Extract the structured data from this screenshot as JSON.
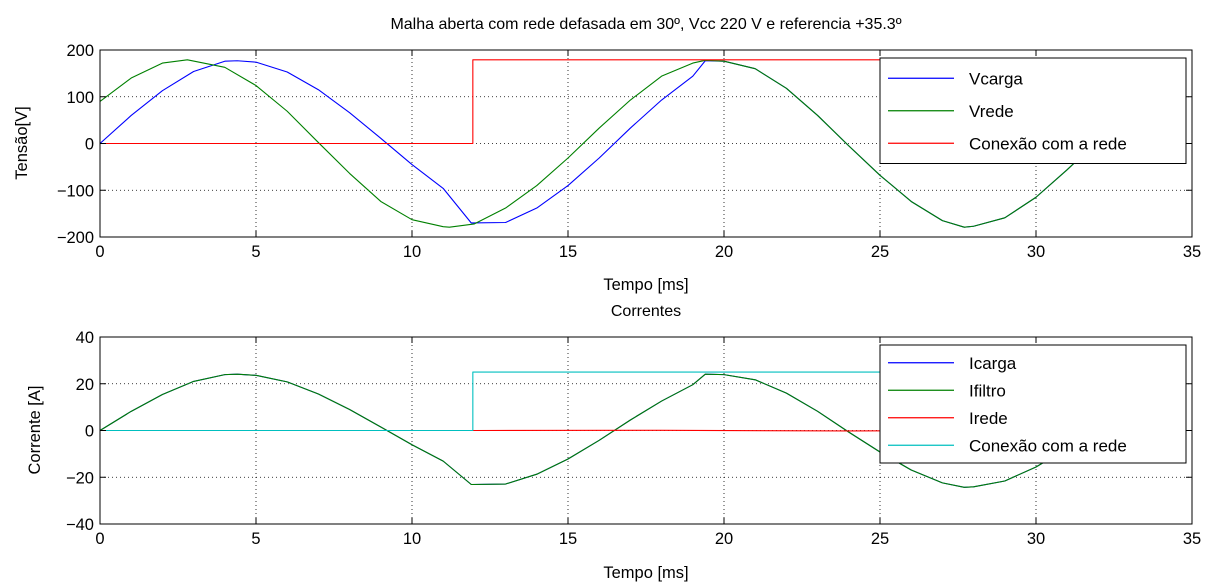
{
  "chart_data": [
    {
      "type": "line",
      "title": "Malha aberta com rede defasada em 30º, Vcc 220 V e referencia +35.3º",
      "xlabel": "Tempo [ms]",
      "ylabel": "Tensão[V]",
      "xlim": [
        0,
        35
      ],
      "ylim": [
        -200,
        200
      ],
      "xticks": [
        "0",
        "5",
        "10",
        "15",
        "20",
        "25",
        "30",
        "35"
      ],
      "yticks": [
        "−200",
        "−100",
        "0",
        "100",
        "200"
      ],
      "grid": true,
      "legend_position": "top-right",
      "series": [
        {
          "name": "Vcarga",
          "color": "#0000ff",
          "x": [
            0,
            1,
            2,
            3,
            4,
            4.4,
            5,
            6,
            7,
            8,
            9,
            10,
            11,
            11.9,
            13,
            14,
            15,
            16,
            17,
            18,
            19,
            19.4,
            20,
            21,
            22,
            23,
            24,
            25,
            26,
            27,
            27.7,
            28,
            29,
            30,
            31,
            32,
            33.3
          ],
          "y": [
            0,
            60,
            113,
            154,
            176,
            177,
            174,
            153,
            115,
            66,
            11,
            -45,
            -96,
            -170,
            -169,
            -138,
            -90,
            -31,
            33,
            93,
            144,
            177,
            176,
            160,
            118,
            60,
            -5,
            -68,
            -124,
            -165,
            -179,
            -177,
            -159,
            -115,
            -56,
            7,
            110
          ]
        },
        {
          "name": "Vrede",
          "color": "#008000",
          "x": [
            0,
            1,
            2,
            2.8,
            4,
            5,
            6,
            7,
            8,
            9,
            10,
            11,
            11.2,
            12,
            13,
            14,
            15,
            16,
            17,
            18,
            19,
            19.4,
            20,
            21,
            22,
            23,
            24,
            25,
            26,
            27,
            27.7,
            28,
            29,
            30,
            31,
            32,
            33.3
          ],
          "y": [
            90,
            140,
            172,
            179,
            163,
            124,
            69,
            2,
            -64,
            -124,
            -163,
            -178,
            -179,
            -172,
            -138,
            -90,
            -31,
            33,
            93,
            144,
            172,
            178,
            176,
            160,
            118,
            60,
            -5,
            -68,
            -124,
            -165,
            -179,
            -177,
            -159,
            -115,
            -56,
            7,
            110
          ]
        },
        {
          "name": "Conexão com a rede",
          "color": "#ff0000",
          "x": [
            0,
            11.95,
            11.95,
            33.3
          ],
          "y": [
            0,
            0,
            179,
            179
          ]
        }
      ]
    },
    {
      "type": "line",
      "title": "Correntes",
      "xlabel": "Tempo [ms]",
      "ylabel": "Corrente [A]",
      "xlim": [
        0,
        35
      ],
      "ylim": [
        -40,
        40
      ],
      "xticks": [
        "0",
        "5",
        "10",
        "15",
        "20",
        "25",
        "30",
        "35"
      ],
      "yticks": [
        "−40",
        "−20",
        "0",
        "20",
        "40"
      ],
      "grid": true,
      "legend_position": "top-right",
      "series": [
        {
          "name": "Icarga",
          "color": "#0000ff",
          "x": [
            0,
            1,
            2,
            3,
            4,
            4.4,
            5,
            6,
            7,
            8,
            9,
            10,
            11,
            11.9,
            13,
            14,
            15,
            16,
            17,
            18,
            19,
            19.4,
            20,
            21,
            22,
            23,
            24,
            25,
            26,
            27,
            27.7,
            28,
            29,
            30,
            31,
            32,
            33.3
          ],
          "y": [
            0,
            8.2,
            15.4,
            21,
            23.9,
            24.1,
            23.6,
            20.8,
            15.6,
            9,
            1.5,
            -6.1,
            -13.1,
            -23.1,
            -22.9,
            -18.7,
            -12.2,
            -4.2,
            4.5,
            12.6,
            19.6,
            24.1,
            23.9,
            21.7,
            16,
            8.2,
            -0.7,
            -9.2,
            -16.9,
            -22.4,
            -24.3,
            -24.1,
            -21.6,
            -15.6,
            -7.6,
            1,
            15
          ]
        },
        {
          "name": "Ifiltro",
          "color": "#008000",
          "x": [
            0,
            1,
            2,
            3,
            4,
            4.4,
            5,
            6,
            7,
            8,
            9,
            10,
            11,
            11.9,
            13,
            14,
            15,
            16,
            17,
            18,
            19,
            19.4,
            20,
            21,
            22,
            23,
            24,
            25,
            26,
            27,
            27.7,
            28,
            29,
            30,
            31,
            32,
            33.3
          ],
          "y": [
            0,
            8.2,
            15.4,
            21,
            23.9,
            24.1,
            23.6,
            20.8,
            15.6,
            9,
            1.5,
            -6.1,
            -13.1,
            -23.1,
            -22.9,
            -18.7,
            -12.2,
            -4.2,
            4.5,
            12.6,
            19.6,
            24.1,
            23.9,
            21.7,
            16,
            8.2,
            -0.7,
            -9.2,
            -16.9,
            -22.4,
            -24.3,
            -24.1,
            -21.6,
            -15.6,
            -7.6,
            1,
            15
          ]
        },
        {
          "name": "Irede",
          "color": "#ff0000",
          "x": [
            0,
            12,
            18,
            24,
            28,
            33.3
          ],
          "y": [
            0,
            0,
            0.1,
            -0.2,
            0,
            0
          ]
        },
        {
          "name": "Conexão com a rede",
          "color": "#00bfbf",
          "x": [
            0,
            11.95,
            11.95,
            33.3
          ],
          "y": [
            0,
            0,
            25,
            25
          ]
        }
      ]
    }
  ]
}
